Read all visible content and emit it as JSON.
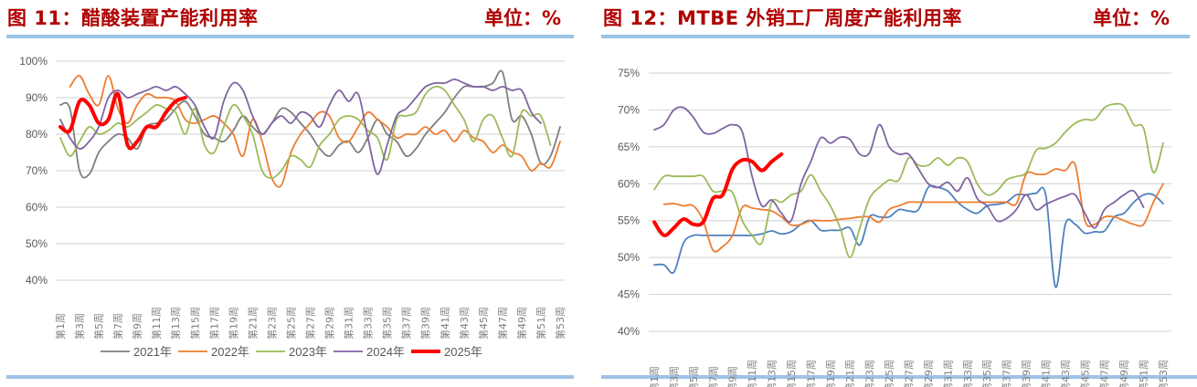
{
  "left": {
    "title": "图 11：醋酸装置产能利用率",
    "unit": "单位：%"
  },
  "right": {
    "title": "图 12：MTBE 外销工厂周度产能利用率",
    "unit": "单位：%"
  },
  "chart_data": [
    {
      "type": "line",
      "title": "图 11：醋酸装置产能利用率",
      "ylabel": "%",
      "ylim": [
        40,
        100
      ],
      "yticks": [
        40,
        50,
        60,
        70,
        80,
        90,
        100
      ],
      "ytick_labels": [
        "40%",
        "50%",
        "60%",
        "70%",
        "80%",
        "90%",
        "100%"
      ],
      "x_tick_labels": [
        "第1周",
        "第3周",
        "第5周",
        "第7周",
        "第9周",
        "第11周",
        "第13周",
        "第15周",
        "第17周",
        "第19周",
        "第21周",
        "第23周",
        "第25周",
        "第27周",
        "第29周",
        "第31周",
        "第33周",
        "第35周",
        "第37周",
        "第39周",
        "第41周",
        "第43周",
        "第45周",
        "第47周",
        "第49周",
        "第51周",
        "第53周"
      ],
      "grid": true,
      "legend": "bottom",
      "series": [
        {
          "name": "2021年",
          "color": "#7f7f7f",
          "width": 1.8,
          "values": [
            88,
            87,
            70,
            69,
            75,
            78,
            80,
            79,
            76,
            82,
            83,
            84,
            87,
            89,
            85,
            80,
            79,
            78,
            81,
            85,
            82,
            80,
            83,
            87,
            86,
            83,
            80,
            76,
            74,
            77,
            78,
            75,
            79,
            84,
            80,
            78,
            74,
            76,
            80,
            83,
            86,
            90,
            93,
            93,
            93,
            94,
            97,
            84,
            85,
            80,
            72,
            74,
            82
          ]
        },
        {
          "name": "2022年",
          "color": "#ed7d31",
          "width": 1.8,
          "values": [
            null,
            93,
            96,
            91,
            88,
            96,
            87,
            83,
            88,
            91,
            90,
            90,
            89,
            84,
            83,
            84,
            85,
            83,
            80,
            74,
            84,
            78,
            68,
            66,
            75,
            80,
            83,
            86,
            85,
            79,
            78,
            82,
            86,
            84,
            82,
            79,
            80,
            80,
            82,
            80,
            81,
            78,
            81,
            79,
            78,
            75,
            77,
            75,
            74,
            70,
            72,
            71,
            78
          ]
        },
        {
          "name": "2023年",
          "color": "#9bbb59",
          "width": 1.8,
          "values": [
            79,
            74,
            78,
            82,
            80,
            81,
            83,
            82,
            84,
            86,
            88,
            87,
            86,
            80,
            87,
            77,
            75,
            82,
            88,
            85,
            80,
            70,
            68,
            70,
            74,
            73,
            71,
            77,
            80,
            84,
            85,
            84,
            81,
            79,
            73,
            84,
            85,
            86,
            91,
            93,
            92,
            88,
            84,
            78,
            84,
            85,
            79,
            74,
            86,
            85,
            85,
            77,
            null
          ]
        },
        {
          "name": "2024年",
          "color": "#8064a2",
          "width": 1.8,
          "values": [
            84,
            79,
            76,
            78,
            82,
            90,
            92,
            90,
            91,
            92,
            93,
            92,
            93,
            91,
            88,
            82,
            79,
            89,
            94,
            92,
            85,
            80,
            83,
            85,
            83,
            86,
            85,
            82,
            88,
            92,
            89,
            91,
            79,
            69,
            77,
            85,
            87,
            90,
            93,
            94,
            94,
            95,
            94,
            93,
            93,
            92,
            93,
            92,
            92,
            86,
            83,
            null,
            null
          ]
        },
        {
          "name": "2025年",
          "color": "#ff0000",
          "width": 4,
          "values": [
            82,
            81,
            89,
            88,
            83,
            84,
            91,
            77,
            78,
            82,
            82,
            86,
            89,
            90
          ]
        }
      ]
    },
    {
      "type": "line",
      "title": "图 12：MTBE 外销工厂周度产能利用率",
      "ylabel": "%",
      "ylim": [
        40,
        75
      ],
      "yticks": [
        40,
        45,
        50,
        55,
        60,
        65,
        70,
        75
      ],
      "ytick_labels": [
        "40%",
        "45%",
        "50%",
        "55%",
        "60%",
        "65%",
        "70%",
        "75%"
      ],
      "x_tick_labels": [
        "第1周",
        "第3周",
        "第5周",
        "第7周",
        "第9周",
        "第11周",
        "第13周",
        "第15周",
        "第17周",
        "第19周",
        "第21周",
        "第23周",
        "第25周",
        "第27周",
        "第29周",
        "第31周",
        "第33周",
        "第35周",
        "第37周",
        "第39周",
        "第41周",
        "第43周",
        "第45周",
        "第47周",
        "第49周",
        "第51周",
        "第53周"
      ],
      "grid": true,
      "series": [
        {
          "color": "#4f81bd",
          "width": 1.8,
          "values": [
            49,
            49,
            48,
            52,
            53,
            53,
            53,
            53,
            53,
            53,
            53,
            53.2,
            53.6,
            53.2,
            53.5,
            54.5,
            55,
            53.7,
            53.7,
            53.7,
            54,
            51.7,
            55.5,
            55.5,
            55.5,
            56.5,
            56.3,
            56.5,
            59.5,
            59.5,
            59,
            57.5,
            56.5,
            56,
            57,
            57.2,
            57.5,
            58.5,
            58.5,
            58.7,
            58.5,
            46,
            54.5,
            54.5,
            53.3,
            53.5,
            53.6,
            55.5,
            56,
            57.5,
            58.5,
            58.5,
            57.3
          ]
        },
        {
          "color": "#ed7d31",
          "width": 1.8,
          "values": [
            null,
            57.2,
            57.3,
            57,
            57,
            55,
            51,
            51.5,
            53,
            56.8,
            56.7,
            56.5,
            56.3,
            55.5,
            54.4,
            54.5,
            55,
            55,
            55,
            55.2,
            55.3,
            55.5,
            55.5,
            54.8,
            56.5,
            57,
            57.5,
            57.5,
            57.5,
            57.5,
            57.5,
            57.5,
            57.5,
            57.5,
            57.5,
            57.5,
            57.5,
            57.3,
            61.3,
            61.3,
            61.3,
            62,
            61.8,
            62.6,
            55,
            54.5,
            55.5,
            55.5,
            55,
            54.5,
            54.5,
            57.5,
            60
          ]
        },
        {
          "color": "#9bbb59",
          "width": 1.8,
          "values": [
            59.2,
            61,
            61,
            61,
            61,
            61,
            59,
            59,
            58.8,
            55,
            53,
            52,
            57.5,
            57.5,
            58.5,
            59,
            61.2,
            59,
            57,
            54,
            50,
            54,
            58,
            59.5,
            60.5,
            60.5,
            63.5,
            62.5,
            62.5,
            63.5,
            62.5,
            63.5,
            63,
            60,
            58.5,
            59,
            60.5,
            61,
            61.5,
            64.5,
            64.8,
            65.5,
            67,
            68.2,
            68.7,
            68.7,
            70.3,
            70.8,
            70.5,
            68,
            67.5,
            61.5,
            65.5
          ]
        },
        {
          "color": "#8064a2",
          "width": 1.8,
          "values": [
            67.3,
            68,
            70,
            70.3,
            69,
            67,
            66.8,
            67.5,
            68,
            67,
            61,
            57,
            57.8,
            56,
            55,
            60,
            63,
            66.2,
            65.5,
            66.3,
            66,
            64,
            64.2,
            68,
            65,
            64,
            64,
            62,
            60,
            59.5,
            60.2,
            59,
            60.8,
            58,
            57,
            55,
            55.3,
            56.5,
            58.5,
            56.5,
            57.2,
            57.8,
            58.3,
            58.5,
            56,
            54,
            56.5,
            57.5,
            58.5,
            59,
            56.8,
            null,
            null
          ]
        },
        {
          "color": "#ff0000",
          "width": 4,
          "values": [
            54.8,
            53,
            54,
            55.2,
            54.5,
            54.8,
            58,
            58.5,
            62,
            63.2,
            63,
            61.8,
            63,
            64
          ]
        }
      ]
    }
  ]
}
